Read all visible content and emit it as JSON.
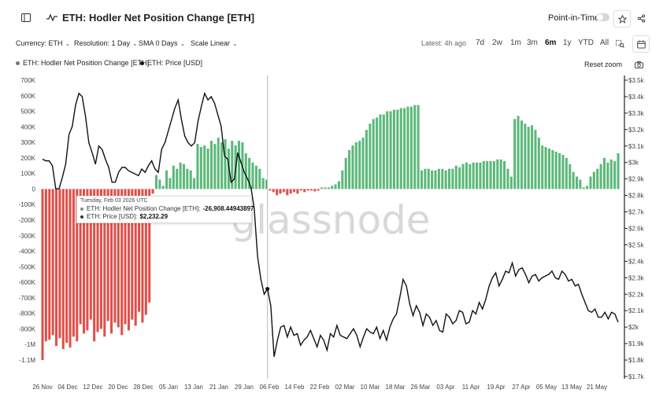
{
  "header": {
    "title": "ETH: Hodler Net Position Change [ETH]",
    "point_in_time_label": "Point-in-Time"
  },
  "controls": {
    "currency": "Currency: ETH",
    "resolution": "Resolution: 1 Day",
    "sma": "SMA 0 Days",
    "scale": "Scale Linear",
    "latest": "Latest: 4h ago",
    "ranges": [
      "7d",
      "2w",
      "1m",
      "3m",
      "6m",
      "1y",
      "YTD",
      "All"
    ],
    "active_range": "6m"
  },
  "legend": {
    "series1": "ETH: Hodler Net Position Change [ETH]",
    "series2": "ETH: Price [USD]",
    "reset_zoom": "Reset zoom"
  },
  "tooltip": {
    "date": "Tuesday, Feb 03 2026 UTC",
    "row1_label": "ETH: Hodler Net Position Change [ETH]:",
    "row1_value": "-26,908.44943897",
    "row2_label": "ETH: Price [USD]:",
    "row2_value": "$2,232.29"
  },
  "watermark": "glassnode",
  "colors": {
    "positive_bar": "#5cb87a",
    "negative_bar": "#e0504a",
    "price_line": "#111111"
  },
  "chart_data": {
    "type": "bar",
    "title": "ETH: Hodler Net Position Change [ETH]",
    "x_ticks": [
      "26 Nov",
      "04 Dec",
      "12 Dec",
      "20 Dec",
      "28 Dec",
      "05 Jan",
      "13 Jan",
      "21 Jan",
      "29 Jan",
      "06 Feb",
      "14 Feb",
      "22 Feb",
      "02 Mar",
      "10 Mar",
      "18 Mar",
      "26 Mar",
      "03 Apr",
      "11 Apr",
      "19 Apr",
      "27 Apr",
      "05 May",
      "13 May",
      "21 May"
    ],
    "y_left_ticks": [
      "700K",
      "600K",
      "500K",
      "400K",
      "300K",
      "200K",
      "100K",
      "0",
      "-100K",
      "-200K",
      "-300K",
      "-400K",
      "-500K",
      "-600K",
      "-700K",
      "-800K",
      "-900K",
      "-1M",
      "-1.1M"
    ],
    "y_right_ticks": [
      "$3.5k",
      "$3.4k",
      "$3.3k",
      "$3.2k",
      "$3.1k",
      "$3k",
      "$2.9k",
      "$2.8k",
      "$2.7k",
      "$2.6k",
      "$2.5k",
      "$2.4k",
      "$2.3k",
      "$2.2k",
      "$2.1k",
      "$2k",
      "$1.9k",
      "$1.8k",
      "$1.7k"
    ],
    "ylim_left": [
      -1100000,
      700000
    ],
    "ylim_right": [
      1700,
      3500
    ],
    "grid": false,
    "series": [
      {
        "name": "ETH: Hodler Net Position Change [ETH]",
        "axis": "left",
        "values": [
          -1100000,
          -980000,
          -970000,
          -940000,
          -1010000,
          -960000,
          -1030000,
          -990000,
          -1020000,
          -950000,
          -980000,
          -870000,
          -930000,
          -910000,
          -840000,
          -980000,
          -920000,
          -900000,
          -950000,
          -850000,
          -930000,
          -860000,
          -890000,
          -940000,
          -870000,
          -910000,
          -840000,
          -880000,
          -790000,
          -860000,
          -810000,
          -730000,
          -30000,
          90000,
          60000,
          20000,
          120000,
          70000,
          150000,
          130000,
          170000,
          160000,
          130000,
          120000,
          70000,
          290000,
          270000,
          280000,
          260000,
          310000,
          290000,
          330000,
          300000,
          320000,
          260000,
          310000,
          280000,
          310000,
          300000,
          230000,
          200000,
          170000,
          150000,
          130000,
          70000,
          60000,
          -10000,
          -20000,
          -40000,
          -30000,
          -20000,
          -40000,
          -30000,
          -20000,
          -30000,
          -10000,
          -20000,
          -10000,
          -10000,
          -15000,
          -10000,
          10000,
          10000,
          10000,
          20000,
          30000,
          50000,
          120000,
          200000,
          250000,
          280000,
          300000,
          310000,
          330000,
          380000,
          420000,
          450000,
          460000,
          480000,
          480000,
          500000,
          500000,
          510000,
          510000,
          520000,
          520000,
          530000,
          530000,
          540000,
          540000,
          120000,
          130000,
          130000,
          120000,
          120000,
          130000,
          130000,
          120000,
          130000,
          130000,
          150000,
          140000,
          160000,
          170000,
          160000,
          170000,
          170000,
          170000,
          180000,
          180000,
          180000,
          180000,
          190000,
          190000,
          180000,
          130000,
          80000,
          450000,
          470000,
          440000,
          420000,
          400000,
          410000,
          380000,
          330000,
          280000,
          270000,
          260000,
          250000,
          240000,
          230000,
          220000,
          200000,
          160000,
          110000,
          80000,
          60000,
          10000,
          20000,
          80000,
          110000,
          130000,
          160000,
          200000,
          170000,
          190000,
          180000,
          230000
        ]
      },
      {
        "name": "ETH: Price [USD]",
        "axis": "right",
        "values": [
          3020,
          3010,
          3010,
          2980,
          2840,
          2840,
          2910,
          2990,
          3170,
          3220,
          3350,
          3420,
          3400,
          3280,
          3120,
          3060,
          2990,
          3100,
          3080,
          3020,
          2970,
          2880,
          2880,
          2940,
          2970,
          2970,
          2950,
          2940,
          2930,
          2920,
          2960,
          2940,
          2980,
          3010,
          2960,
          2940,
          3080,
          3120,
          3190,
          3260,
          3330,
          3380,
          3260,
          3160,
          3120,
          3100,
          3120,
          3250,
          3340,
          3420,
          3380,
          3400,
          3360,
          3290,
          3220,
          3040,
          3020,
          2880,
          2900,
          3060,
          3000,
          2940,
          2900,
          2850,
          2720,
          2430,
          2290,
          2200,
          2232,
          2130,
          1820,
          1920,
          2000,
          2010,
          1940,
          2000,
          1950,
          1960,
          1890,
          1920,
          1940,
          1980,
          1930,
          1880,
          1950,
          1920,
          1860,
          1960,
          1940,
          2010,
          1950,
          1940,
          1930,
          1960,
          1990,
          1950,
          1880,
          1940,
          1990,
          1970,
          1960,
          2000,
          1930,
          1980,
          1920,
          2000,
          2050,
          2080,
          2180,
          2290,
          2250,
          2140,
          2070,
          2130,
          2090,
          2010,
          2080,
          2060,
          2010,
          2040,
          1980,
          1970,
          2080,
          2060,
          2020,
          2040,
          2100,
          2090,
          2020,
          2030,
          2100,
          2080,
          2150,
          2110,
          2170,
          2250,
          2300,
          2330,
          2250,
          2290,
          2340,
          2330,
          2390,
          2310,
          2350,
          2360,
          2320,
          2270,
          2310,
          2320,
          2280,
          2300,
          2310,
          2320,
          2340,
          2300,
          2290,
          2340,
          2320,
          2280,
          2290,
          2250,
          2260,
          2200,
          2150,
          2100,
          2090,
          2110,
          2060,
          2060,
          2090,
          2050,
          2090,
          2080,
          2030
        ]
      }
    ],
    "crosshair_date": "Feb 03 2026"
  }
}
